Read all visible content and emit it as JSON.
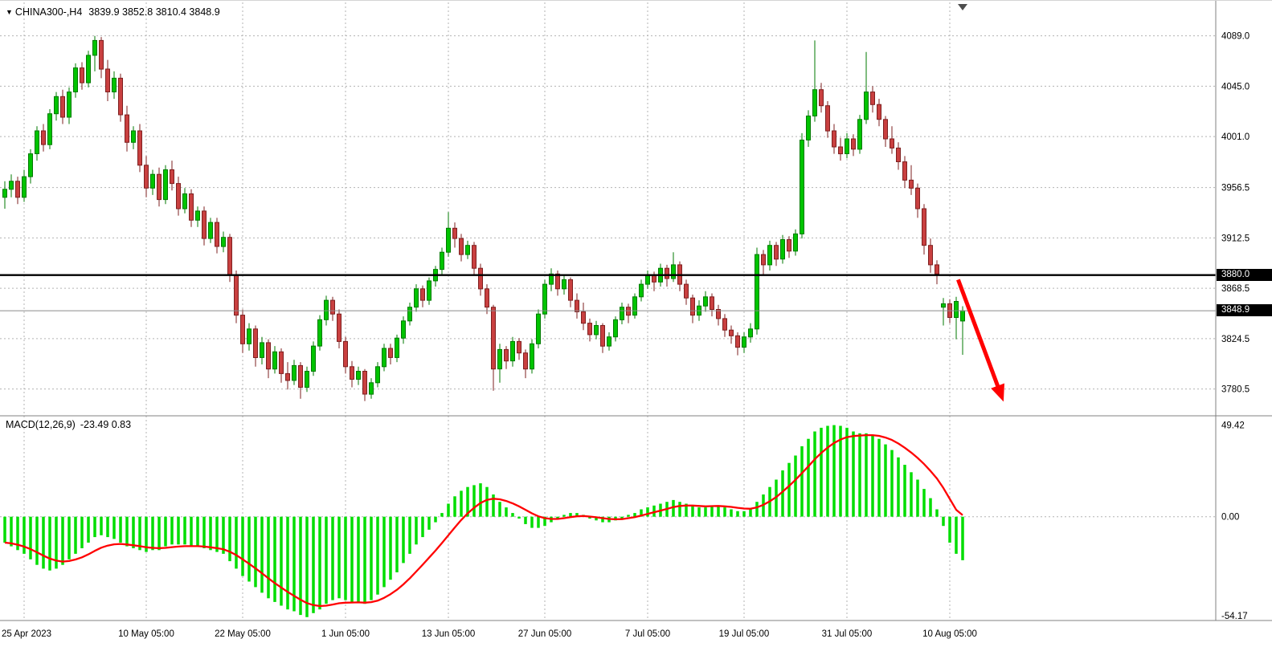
{
  "colors": {
    "background": "#ffffff",
    "grid": "#b3b3b3",
    "text": "#000000",
    "bull": "#00c400",
    "bull_border": "#007a00",
    "bear": "#c94040",
    "bear_border": "#7e1f1f",
    "macd_hist": "#00dd00",
    "signal": "#ff0000",
    "price_line": "#000000",
    "bid_line": "#8a8a8a",
    "badge_bg": "#000000",
    "badge_text": "#ffffff",
    "separator": "#808080",
    "arrow": "#ff0000",
    "shift_marker": "#4d4d4d"
  },
  "chart_data": [
    {
      "type": "candlestick",
      "symbol_label": "CHINA300-,H4",
      "ohlc_label": "3839.9 3852.8 3810.4 3848.9",
      "open": 3839.9,
      "high": 3852.8,
      "low": 3810.4,
      "close": 3848.9,
      "ylim": [
        3762,
        4100
      ],
      "grid": true,
      "horizontal_line": 3880.0,
      "line_label": "3880.0",
      "current_price": 3848.9,
      "price_label": "3848.9",
      "y_axis_labels": [
        "4089.0",
        "4045.0",
        "4001.0",
        "3956.5",
        "3912.5",
        "3868.5",
        "3824.5",
        "3780.5"
      ],
      "x_axis_labels": [
        {
          "text": "25 Apr 2023",
          "i": 3
        },
        {
          "text": "10 May 05:00",
          "i": 22
        },
        {
          "text": "22 May 05:00",
          "i": 37
        },
        {
          "text": "1 Jun 05:00",
          "i": 53
        },
        {
          "text": "13 Jun 05:00",
          "i": 69
        },
        {
          "text": "27 Jun 05:00",
          "i": 84
        },
        {
          "text": "7 Jul 05:00",
          "i": 100
        },
        {
          "text": "19 Jul 05:00",
          "i": 115
        },
        {
          "text": "31 Jul 05:00",
          "i": 131
        },
        {
          "text": "10 Aug 05:00",
          "i": 147
        }
      ],
      "candles": [
        [
          3948,
          3962,
          3938,
          3955
        ],
        [
          3955,
          3968,
          3948,
          3962
        ],
        [
          3962,
          3966,
          3942,
          3948
        ],
        [
          3948,
          3972,
          3944,
          3966
        ],
        [
          3966,
          3990,
          3960,
          3986
        ],
        [
          3986,
          4010,
          3980,
          4006
        ],
        [
          4006,
          4012,
          3988,
          3994
        ],
        [
          3994,
          4025,
          3990,
          4021
        ],
        [
          4021,
          4040,
          4015,
          4036
        ],
        [
          4036,
          4042,
          4012,
          4018
        ],
        [
          4018,
          4044,
          4012,
          4040
        ],
        [
          4040,
          4065,
          4035,
          4061
        ],
        [
          4061,
          4066,
          4042,
          4048
        ],
        [
          4048,
          4076,
          4044,
          4072
        ],
        [
          4072,
          4089,
          4058,
          4085
        ],
        [
          4085,
          4088,
          4052,
          4060
        ],
        [
          4060,
          4068,
          4032,
          4040
        ],
        [
          4040,
          4058,
          4034,
          4052
        ],
        [
          4052,
          4056,
          4014,
          4020
        ],
        [
          4020,
          4028,
          3988,
          3996
        ],
        [
          3996,
          4010,
          3990,
          4006
        ],
        [
          4006,
          4012,
          3970,
          3976
        ],
        [
          3976,
          3984,
          3948,
          3956
        ],
        [
          3956,
          3972,
          3950,
          3968
        ],
        [
          3968,
          3974,
          3940,
          3946
        ],
        [
          3946,
          3976,
          3942,
          3972
        ],
        [
          3972,
          3980,
          3954,
          3960
        ],
        [
          3960,
          3966,
          3932,
          3938
        ],
        [
          3938,
          3956,
          3934,
          3951
        ],
        [
          3951,
          3955,
          3922,
          3928
        ],
        [
          3928,
          3940,
          3922,
          3936
        ],
        [
          3936,
          3940,
          3906,
          3912
        ],
        [
          3912,
          3930,
          3908,
          3926
        ],
        [
          3926,
          3930,
          3899,
          3905
        ],
        [
          3905,
          3918,
          3900,
          3913
        ],
        [
          3913,
          3916,
          3874,
          3880
        ],
        [
          3880,
          3884,
          3838,
          3845
        ],
        [
          3845,
          3850,
          3812,
          3820
        ],
        [
          3820,
          3838,
          3814,
          3833
        ],
        [
          3833,
          3836,
          3800,
          3808
        ],
        [
          3808,
          3826,
          3802,
          3821
        ],
        [
          3821,
          3824,
          3790,
          3798
        ],
        [
          3798,
          3818,
          3794,
          3813
        ],
        [
          3813,
          3816,
          3786,
          3794
        ],
        [
          3794,
          3804,
          3780,
          3788
        ],
        [
          3788,
          3806,
          3784,
          3801
        ],
        [
          3801,
          3804,
          3772,
          3782
        ],
        [
          3782,
          3800,
          3778,
          3796
        ],
        [
          3796,
          3822,
          3792,
          3818
        ],
        [
          3818,
          3845,
          3814,
          3841
        ],
        [
          3841,
          3862,
          3836,
          3858
        ],
        [
          3858,
          3861,
          3840,
          3846
        ],
        [
          3846,
          3850,
          3816,
          3822
        ],
        [
          3822,
          3826,
          3794,
          3800
        ],
        [
          3800,
          3805,
          3782,
          3789
        ],
        [
          3789,
          3800,
          3784,
          3796
        ],
        [
          3796,
          3798,
          3770,
          3776
        ],
        [
          3776,
          3790,
          3772,
          3786
        ],
        [
          3786,
          3804,
          3782,
          3800
        ],
        [
          3800,
          3820,
          3796,
          3816
        ],
        [
          3816,
          3820,
          3802,
          3808
        ],
        [
          3808,
          3828,
          3804,
          3825
        ],
        [
          3825,
          3844,
          3820,
          3840
        ],
        [
          3840,
          3856,
          3836,
          3852
        ],
        [
          3852,
          3872,
          3848,
          3868
        ],
        [
          3868,
          3871,
          3852,
          3858
        ],
        [
          3858,
          3878,
          3854,
          3875
        ],
        [
          3875,
          3888,
          3870,
          3885
        ],
        [
          3885,
          3904,
          3880,
          3900
        ],
        [
          3900,
          3935,
          3896,
          3921
        ],
        [
          3921,
          3926,
          3904,
          3912
        ],
        [
          3912,
          3916,
          3892,
          3898
        ],
        [
          3898,
          3910,
          3894,
          3906
        ],
        [
          3906,
          3909,
          3880,
          3886
        ],
        [
          3886,
          3890,
          3862,
          3868
        ],
        [
          3868,
          3872,
          3846,
          3852
        ],
        [
          3852,
          3854,
          3779,
          3798
        ],
        [
          3798,
          3820,
          3786,
          3815
        ],
        [
          3815,
          3818,
          3798,
          3805
        ],
        [
          3805,
          3826,
          3800,
          3822
        ],
        [
          3822,
          3825,
          3806,
          3812
        ],
        [
          3812,
          3815,
          3790,
          3798
        ],
        [
          3798,
          3824,
          3794,
          3820
        ],
        [
          3820,
          3850,
          3816,
          3846
        ],
        [
          3846,
          3876,
          3842,
          3872
        ],
        [
          3872,
          3886,
          3866,
          3881
        ],
        [
          3881,
          3884,
          3862,
          3868
        ],
        [
          3868,
          3880,
          3863,
          3876
        ],
        [
          3876,
          3878,
          3852,
          3858
        ],
        [
          3858,
          3864,
          3842,
          3848
        ],
        [
          3848,
          3856,
          3832,
          3838
        ],
        [
          3838,
          3842,
          3822,
          3828
        ],
        [
          3828,
          3840,
          3824,
          3836
        ],
        [
          3836,
          3838,
          3812,
          3818
        ],
        [
          3818,
          3830,
          3814,
          3826
        ],
        [
          3826,
          3844,
          3822,
          3841
        ],
        [
          3841,
          3856,
          3837,
          3852
        ],
        [
          3852,
          3855,
          3838,
          3845
        ],
        [
          3845,
          3864,
          3842,
          3861
        ],
        [
          3861,
          3876,
          3857,
          3872
        ],
        [
          3872,
          3884,
          3868,
          3880
        ],
        [
          3880,
          3883,
          3866,
          3874
        ],
        [
          3874,
          3890,
          3870,
          3886
        ],
        [
          3886,
          3889,
          3870,
          3877
        ],
        [
          3877,
          3900,
          3874,
          3889
        ],
        [
          3889,
          3892,
          3866,
          3872
        ],
        [
          3872,
          3876,
          3854,
          3860
        ],
        [
          3860,
          3863,
          3838,
          3845
        ],
        [
          3845,
          3858,
          3840,
          3853
        ],
        [
          3853,
          3866,
          3848,
          3861
        ],
        [
          3861,
          3864,
          3844,
          3850
        ],
        [
          3850,
          3854,
          3836,
          3842
        ],
        [
          3842,
          3846,
          3826,
          3832
        ],
        [
          3832,
          3836,
          3820,
          3827
        ],
        [
          3827,
          3830,
          3810,
          3817
        ],
        [
          3817,
          3830,
          3812,
          3826
        ],
        [
          3826,
          3838,
          3821,
          3833
        ],
        [
          3833,
          3904,
          3828,
          3898
        ],
        [
          3898,
          3902,
          3880,
          3889
        ],
        [
          3889,
          3910,
          3884,
          3906
        ],
        [
          3906,
          3909,
          3888,
          3894
        ],
        [
          3894,
          3915,
          3890,
          3911
        ],
        [
          3911,
          3914,
          3895,
          3901
        ],
        [
          3901,
          3920,
          3897,
          3916
        ],
        [
          3916,
          4004,
          3912,
          3998
        ],
        [
          3998,
          4024,
          3992,
          4019
        ],
        [
          4019,
          4085,
          4014,
          4042
        ],
        [
          4042,
          4048,
          4022,
          4028
        ],
        [
          4028,
          4032,
          4000,
          4006
        ],
        [
          4006,
          4012,
          3986,
          3992
        ],
        [
          3992,
          4000,
          3980,
          3986
        ],
        [
          3986,
          4004,
          3982,
          3999
        ],
        [
          3999,
          4003,
          3984,
          3990
        ],
        [
          3990,
          4020,
          3986,
          4016
        ],
        [
          4016,
          4075,
          4012,
          4040
        ],
        [
          4040,
          4045,
          4022,
          4029
        ],
        [
          4029,
          4034,
          4010,
          4016
        ],
        [
          4016,
          4019,
          3992,
          3999
        ],
        [
          3999,
          4010,
          3986,
          3991
        ],
        [
          3991,
          3996,
          3972,
          3979
        ],
        [
          3979,
          3984,
          3956,
          3963
        ],
        [
          3963,
          3976,
          3950,
          3956
        ],
        [
          3956,
          3960,
          3930,
          3938
        ],
        [
          3938,
          3942,
          3898,
          3906
        ],
        [
          3906,
          3912,
          3882,
          3889
        ],
        [
          3889,
          3893,
          3872,
          3881
        ],
        [
          3852,
          3860,
          3836,
          3855
        ],
        [
          3855,
          3859,
          3838,
          3843
        ],
        [
          3843,
          3861,
          3824,
          3857
        ],
        [
          3839.9,
          3852.8,
          3810.4,
          3848.9
        ]
      ],
      "annotations": {
        "arrow_down": {
          "from": {
            "i": 148.3,
            "price": 3876
          },
          "to": {
            "i": 154.8,
            "price": 3778
          }
        },
        "shift_marker_i": 149
      }
    },
    {
      "type": "macd",
      "label": "MACD(12,26,9)",
      "values_text": "-23.49 0.83",
      "macd_value": -23.49,
      "signal_value": 0.83,
      "ylim": [
        -56,
        54
      ],
      "y_axis_labels": [
        "49.42",
        "0.00",
        "-54.17"
      ],
      "histogram": [
        -14,
        -16,
        -18,
        -20,
        -23,
        -26,
        -28,
        -29,
        -28,
        -26,
        -23,
        -20,
        -17,
        -14,
        -11,
        -10,
        -11,
        -12,
        -14,
        -16,
        -17,
        -18,
        -19,
        -18,
        -18,
        -16,
        -15,
        -15,
        -15,
        -16,
        -16,
        -17,
        -18,
        -19,
        -20,
        -24,
        -28,
        -32,
        -35,
        -38,
        -41,
        -44,
        -46,
        -48,
        -50,
        -51,
        -53,
        -54.17,
        -52,
        -50,
        -47,
        -45,
        -44,
        -45,
        -46,
        -46,
        -47,
        -45,
        -42,
        -38,
        -34,
        -30,
        -25,
        -20,
        -15,
        -11,
        -7,
        -3,
        2,
        7,
        11,
        14,
        16,
        17,
        18,
        16,
        12,
        8,
        5,
        2,
        -1,
        -4,
        -6,
        -6,
        -5,
        -3,
        -1,
        1,
        2,
        2,
        1,
        -1,
        -2,
        -3,
        -3,
        -2,
        -1,
        1,
        2,
        4,
        5,
        6,
        7,
        8,
        9,
        8,
        7,
        6,
        5,
        5,
        6,
        6,
        5,
        4,
        3,
        3,
        4,
        8,
        12,
        16,
        20,
        25,
        29,
        33,
        38,
        42,
        46,
        48,
        49,
        49.42,
        49,
        48,
        46,
        45,
        45,
        44,
        42,
        39,
        36,
        32,
        28,
        24,
        20,
        15,
        10,
        4,
        -5,
        -14,
        -20,
        -23.49
      ],
      "signal": [
        -14,
        -14.4,
        -15.1,
        -16.1,
        -17.5,
        -19.2,
        -21,
        -22.6,
        -23.7,
        -24.2,
        -23.9,
        -23.1,
        -21.9,
        -20.3,
        -18.4,
        -16.7,
        -15.6,
        -14.9,
        -14.7,
        -15,
        -15.4,
        -15.9,
        -16.5,
        -16.8,
        -17,
        -16.8,
        -16.4,
        -16.1,
        -15.9,
        -15.9,
        -15.9,
        -16.1,
        -16.5,
        -17,
        -17.6,
        -18.9,
        -20.7,
        -23,
        -25.4,
        -27.9,
        -30.5,
        -33.2,
        -35.8,
        -38.2,
        -40.6,
        -42.7,
        -44.8,
        -46.6,
        -47.7,
        -48.2,
        -48,
        -47.4,
        -46.7,
        -46.4,
        -46.3,
        -46.2,
        -46.4,
        -46.1,
        -45.3,
        -43.8,
        -41.8,
        -39.4,
        -36.5,
        -33.2,
        -29.6,
        -25.9,
        -22.1,
        -18.3,
        -14.2,
        -10,
        -5.8,
        -1.8,
        1.8,
        4.8,
        7.4,
        9.1,
        9.7,
        9.4,
        8.5,
        7.2,
        5.6,
        3.7,
        1.8,
        0.2,
        -0.8,
        -1.2,
        -1.2,
        -0.8,
        -0.2,
        0.2,
        0.4,
        0.1,
        -0.3,
        -0.8,
        -1.2,
        -1.4,
        -1.3,
        -0.8,
        -0.2,
        0.6,
        1.5,
        2.4,
        3.3,
        4.2,
        5.2,
        5.8,
        6,
        6,
        5.8,
        5.6,
        5.7,
        5.8,
        5.6,
        5.3,
        4.8,
        4.4,
        4.3,
        5,
        6.4,
        8.3,
        10.6,
        13.5,
        16.6,
        19.9,
        23.5,
        27.2,
        31,
        34.4,
        37.3,
        39.8,
        41.6,
        42.9,
        43.5,
        43.8,
        44,
        44,
        43.6,
        42.7,
        41.4,
        39.5,
        37.2,
        34.6,
        31.7,
        28.4,
        24.7,
        20.6,
        15.5,
        9.6,
        3.7,
        0.83
      ]
    }
  ]
}
